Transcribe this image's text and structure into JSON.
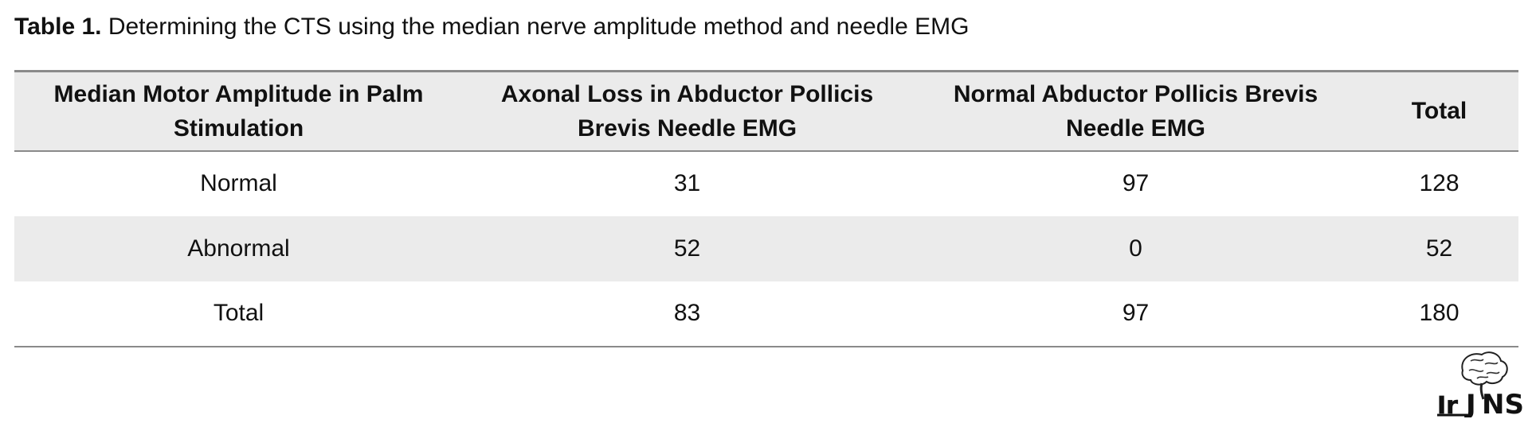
{
  "caption": {
    "label": "Table 1.",
    "text": "Determining the CTS using the median nerve amplitude method and needle EMG"
  },
  "table": {
    "headers": [
      "Median Motor Amplitude in Palm Stimulation",
      "Axonal Loss in Abductor Pollicis Brevis Needle EMG",
      "Normal Abductor Pollicis Brevis Needle EMG",
      "Total"
    ],
    "rows": [
      [
        "Normal",
        "31",
        "97",
        "128"
      ],
      [
        "Abnormal",
        "52",
        "0",
        "52"
      ],
      [
        "Total",
        "83",
        "97",
        "180"
      ]
    ]
  },
  "logo": {
    "text": "IrJNS",
    "icon": "brain-logo-icon"
  },
  "colors": {
    "header_fill": "#ebebeb",
    "rule": "#8a8a8a",
    "text": "#111111"
  }
}
